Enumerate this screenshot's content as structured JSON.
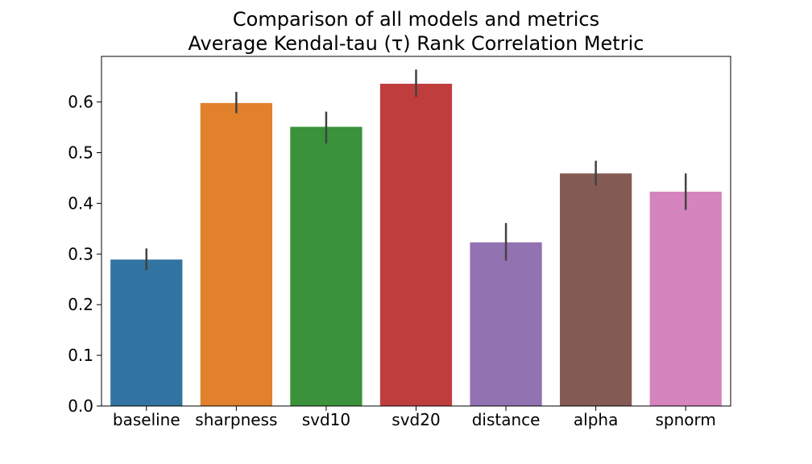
{
  "chart_data": {
    "type": "bar",
    "title_lines": [
      "Comparison of all models and metrics",
      "Average Kendal-tau (τ) Rank Correlation Metric"
    ],
    "xlabel": "",
    "ylabel": "",
    "categories": [
      "baseline",
      "sharpness",
      "svd10",
      "svd20",
      "distance",
      "alpha",
      "spnorm"
    ],
    "values": [
      0.289,
      0.598,
      0.551,
      0.636,
      0.323,
      0.459,
      0.423
    ],
    "error_low": [
      0.268,
      0.578,
      0.518,
      0.61,
      0.287,
      0.435,
      0.387
    ],
    "error_high": [
      0.311,
      0.62,
      0.581,
      0.664,
      0.361,
      0.484,
      0.459
    ],
    "colors": [
      "#3274a1",
      "#e1812c",
      "#3a923a",
      "#c03d3e",
      "#9372b2",
      "#845b53",
      "#d684bd"
    ],
    "error_color": "#424242",
    "ylim": [
      0,
      0.69
    ],
    "yticks": [
      0.0,
      0.1,
      0.2,
      0.3,
      0.4,
      0.5,
      0.6
    ],
    "ytick_labels": [
      "0.0",
      "0.1",
      "0.2",
      "0.3",
      "0.4",
      "0.5",
      "0.6"
    ],
    "grid": false,
    "legend": "none"
  }
}
